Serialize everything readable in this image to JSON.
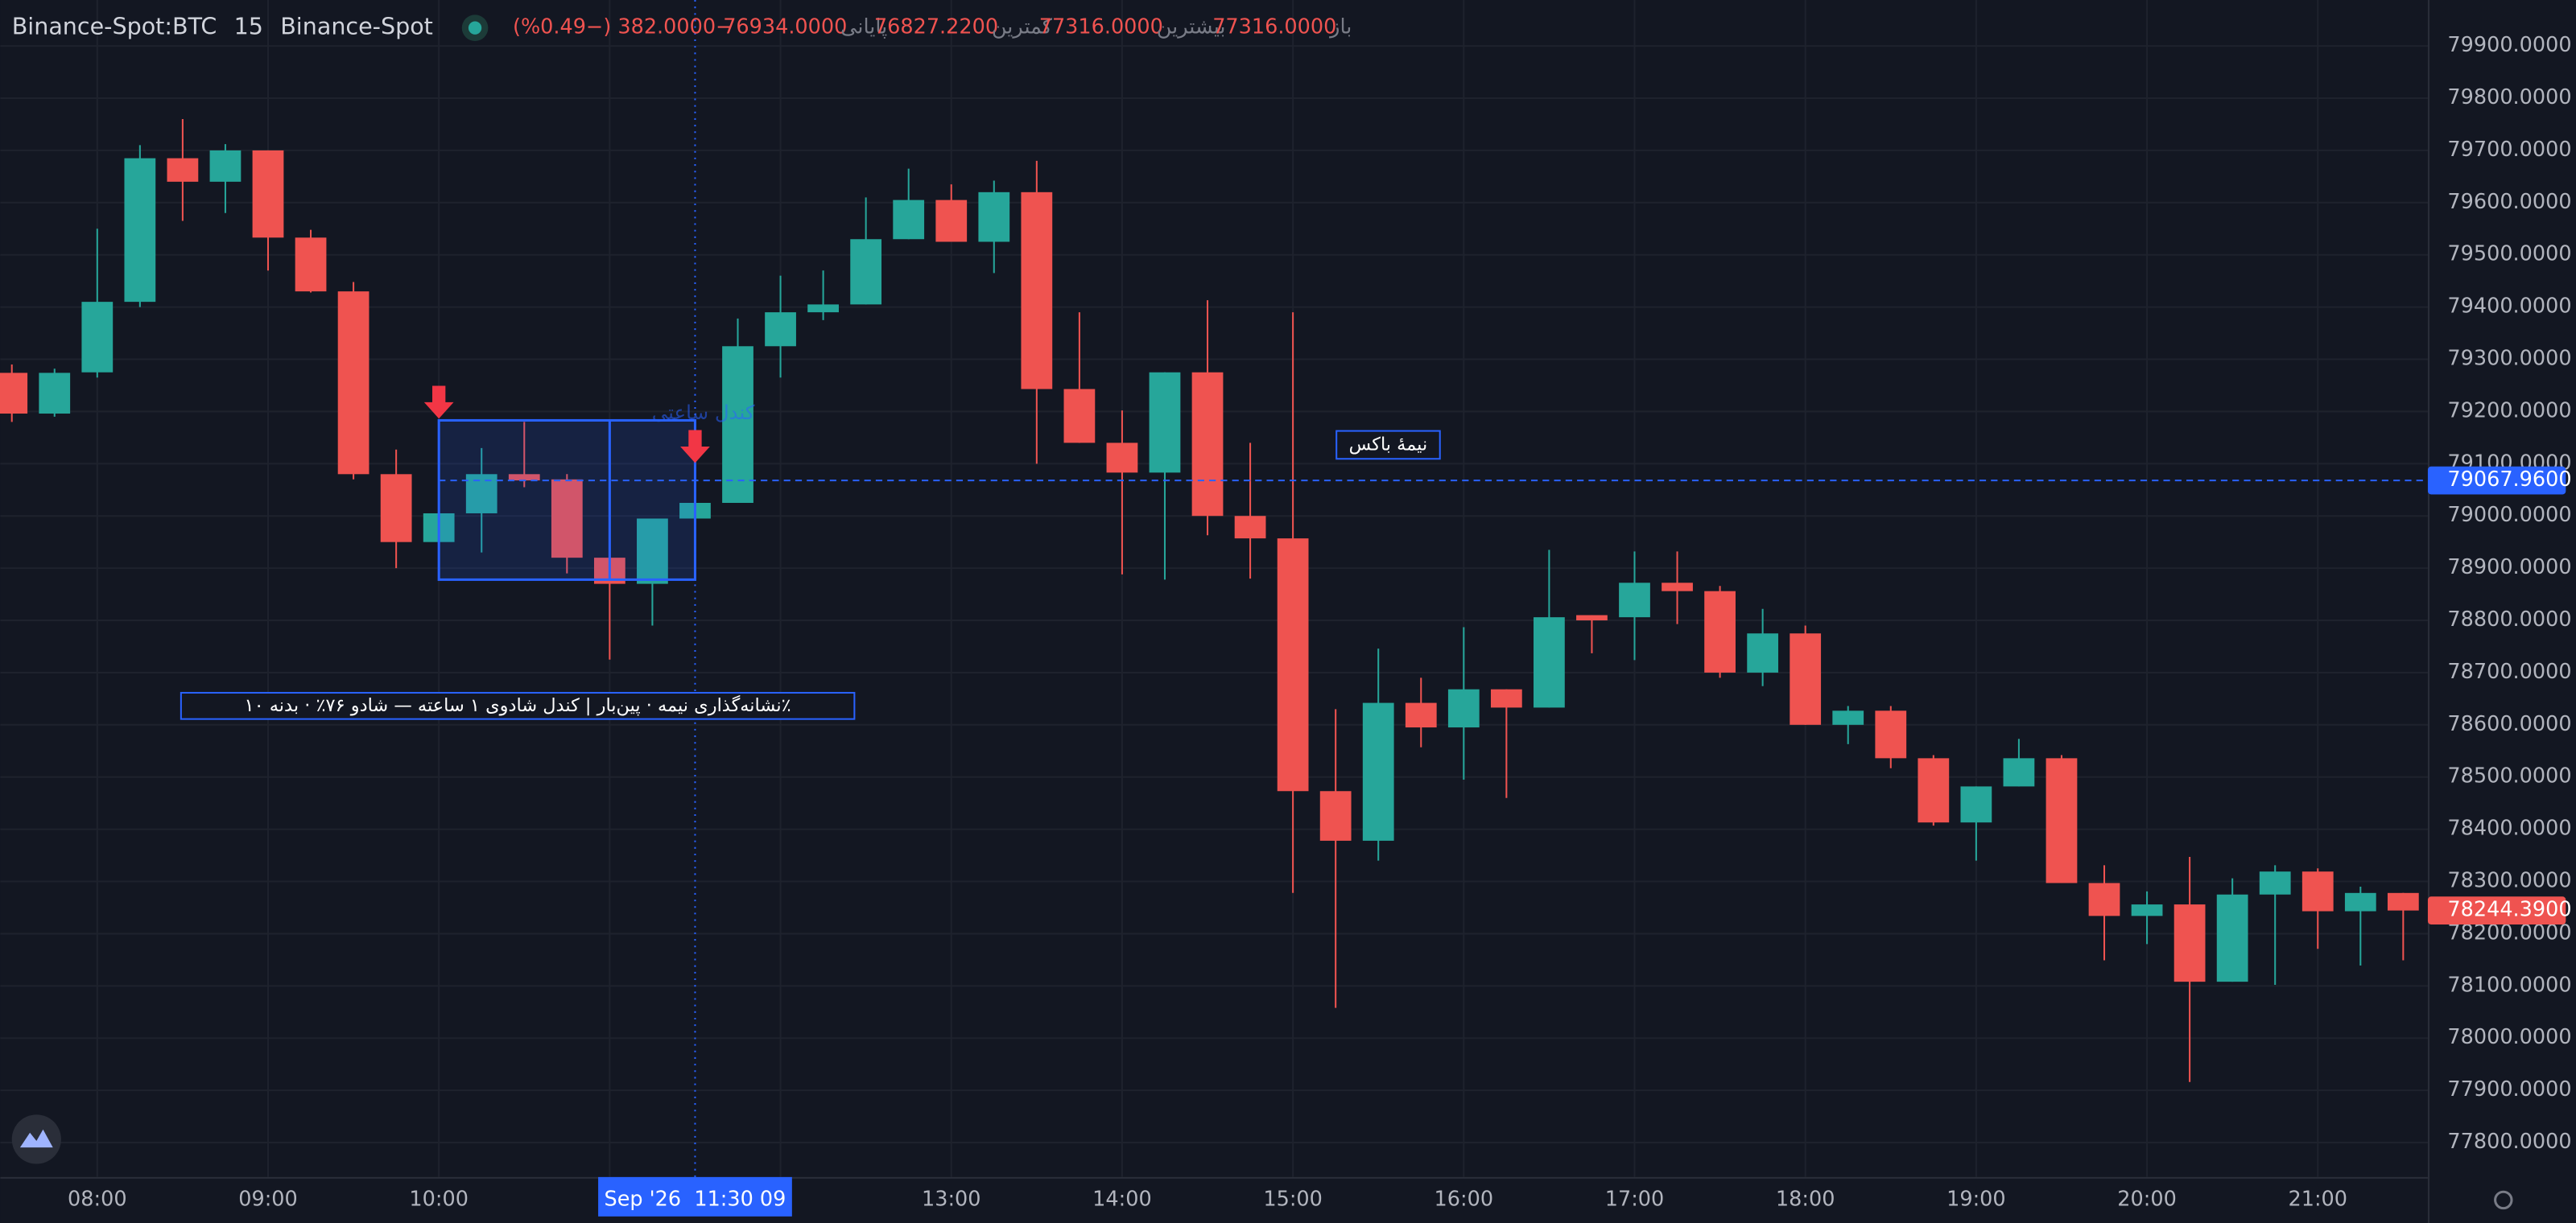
{
  "header": {
    "symbol": "Binance-Spot:BTC",
    "interval": "15",
    "exchange": "Binance-Spot",
    "ohlc": [
      {
        "label": "باز",
        "value": "77316.0000"
      },
      {
        "label": "بیشترین",
        "value": "77316.0000"
      },
      {
        "label": "کمترین",
        "value": "76827.2200"
      },
      {
        "label": "پایانی",
        "value": "76934.0000"
      }
    ],
    "change": "−382.0000 (−0.49%)"
  },
  "chart_data": {
    "type": "candlestick",
    "categories": [
      null,
      null,
      "08:00",
      null,
      null,
      null,
      "09:00",
      null,
      null,
      null,
      "10:00",
      null,
      null,
      null,
      null,
      null,
      null,
      null,
      null,
      null,
      null,
      null,
      "13:00",
      null,
      null,
      null,
      "14:00",
      null,
      null,
      null,
      "15:00",
      null,
      null,
      null,
      "16:00",
      null,
      null,
      null,
      "17:00",
      null,
      null,
      null,
      "18:00",
      null,
      null,
      null,
      "19:00",
      null,
      null,
      null,
      "20:00",
      null,
      null,
      null,
      "21:00",
      null,
      null
    ],
    "open": [
      79274,
      79196,
      79275,
      79410,
      79685,
      79640,
      79700,
      79533,
      79430,
      79080,
      78950,
      79005,
      79080,
      79070,
      78920,
      78870,
      78995,
      79025,
      79325,
      79390,
      79405,
      79530,
      79605,
      79525,
      79620,
      79243,
      79140,
      79083,
      79275,
      79000,
      78957,
      78473,
      78378,
      78642,
      78595,
      78668,
      78633,
      78810,
      78806,
      78872,
      78856,
      78700,
      78775,
      78600,
      78627,
      78536,
      78413,
      78482,
      78536,
      78297,
      78234,
      78256,
      78108,
      78275,
      78319,
      78243,
      78278
    ],
    "high": [
      79290,
      79282,
      79550,
      79710,
      79760,
      79712,
      79700,
      79548,
      79448,
      79127,
      79010,
      79130,
      79180,
      79080,
      78920,
      78995,
      79045,
      79378,
      79460,
      79470,
      79610,
      79665,
      79635,
      79642,
      79680,
      79390,
      79202,
      79275,
      79413,
      79140,
      79390,
      78630,
      78746,
      78690,
      78787,
      78668,
      78935,
      78810,
      78932,
      78932,
      78866,
      78822,
      78790,
      78636,
      78636,
      78542,
      78482,
      78573,
      78542,
      78331,
      78281,
      78347,
      78306,
      78331,
      78325,
      78290,
      78278
    ],
    "low": [
      79180,
      79190,
      79265,
      79400,
      79565,
      79580,
      79470,
      79428,
      79070,
      78900,
      78940,
      78930,
      79055,
      78890,
      78725,
      78790,
      78995,
      79025,
      79265,
      79375,
      79405,
      79530,
      79525,
      79465,
      79100,
      79140,
      78888,
      78878,
      78963,
      78880,
      78278,
      78058,
      78340,
      78557,
      78495,
      78460,
      78633,
      78737,
      78724,
      78793,
      78690,
      78674,
      78600,
      78563,
      78517,
      78407,
      78340,
      78482,
      78297,
      78149,
      78180,
      77916,
      78108,
      78102,
      78171,
      78139,
      78149
    ],
    "close": [
      79196,
      79274,
      79410,
      79685,
      79640,
      79700,
      79533,
      79430,
      79080,
      78950,
      79005,
      79080,
      79068,
      78920,
      78870,
      78995,
      79025,
      79325,
      79390,
      79405,
      79530,
      79605,
      79525,
      79620,
      79243,
      79140,
      79083,
      79275,
      79000,
      78957,
      78473,
      78378,
      78642,
      78595,
      78668,
      78633,
      78806,
      78800,
      78872,
      78856,
      78700,
      78775,
      78600,
      78627,
      78536,
      78413,
      78482,
      78536,
      78297,
      78234,
      78256,
      78108,
      78275,
      78319,
      78243,
      78278,
      78244.39
    ],
    "up_color": "#26a69a",
    "down_color": "#ef5350",
    "ylim": [
      77734,
      79988
    ],
    "yticks": [
      {
        "value": 79900,
        "label": "79900.0000"
      },
      {
        "value": 79800,
        "label": "79800.0000"
      },
      {
        "value": 79700,
        "label": "79700.0000"
      },
      {
        "value": 79600,
        "label": "79600.0000"
      },
      {
        "value": 79500,
        "label": "79500.0000"
      },
      {
        "value": 79400,
        "label": "79400.0000"
      },
      {
        "value": 79300,
        "label": "79300.0000"
      },
      {
        "value": 79200,
        "label": "79200.0000"
      },
      {
        "value": 79100,
        "label": "79100.0000"
      },
      {
        "value": 79000,
        "label": "79000.0000"
      },
      {
        "value": 78900,
        "label": "78900.0000"
      },
      {
        "value": 78800,
        "label": "78800.0000"
      },
      {
        "value": 78700,
        "label": "78700.0000"
      },
      {
        "value": 78600,
        "label": "78600.0000"
      },
      {
        "value": 78500,
        "label": "78500.0000"
      },
      {
        "value": 78400,
        "label": "78400.0000"
      },
      {
        "value": 78300,
        "label": "78300.0000"
      },
      {
        "value": 78200,
        "label": "78200.0000"
      },
      {
        "value": 78100,
        "label": "78100.0000"
      },
      {
        "value": 78000,
        "label": "78000.0000"
      },
      {
        "value": 77900,
        "label": "77900.0000"
      },
      {
        "value": 77800,
        "label": "77800.0000"
      }
    ],
    "grid": true,
    "price_lines": [
      {
        "value": 79067.96,
        "label": "79067.9600",
        "color": "#2962ff"
      },
      {
        "value": 78244.39,
        "label": "78244.3900",
        "color": "#ef5350"
      }
    ],
    "box": {
      "high": 79183,
      "low": 78878,
      "color": "#2962ff"
    },
    "crosshair": {
      "label": "Sep '26  11:30 09"
    },
    "annotations": [
      {
        "text": "٪نشانه‌گذاری نیمه · پین‌بار | کندل شادوی ۱ ساعته — شادو ۷۶٪ · بدنه ۱۰"
      },
      {
        "text": "نیمهٔ باکس"
      },
      {
        "text": "کندل ساعتی"
      }
    ]
  }
}
